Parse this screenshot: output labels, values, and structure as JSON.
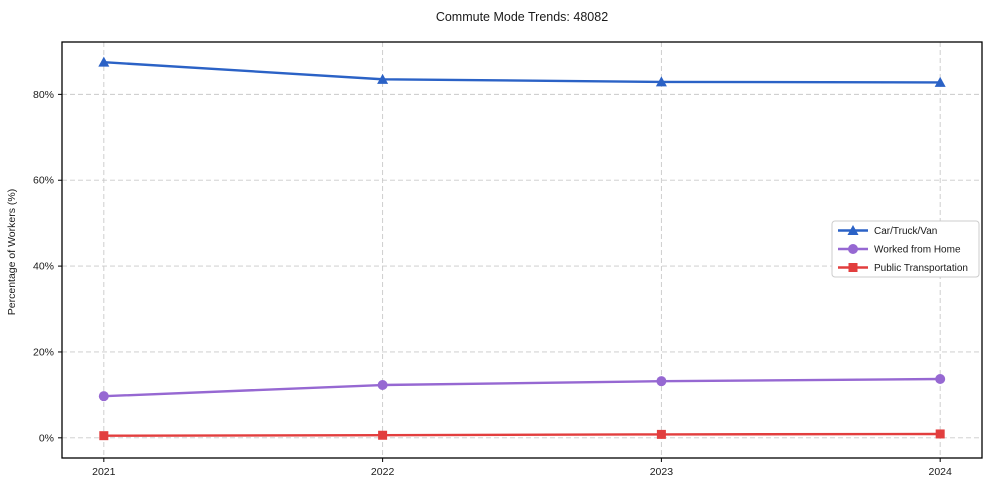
{
  "figure": {
    "background": "#ffffff",
    "spine_color": "#000000",
    "grid_color": "#c9c9c9",
    "text_color": "#1a1a1a",
    "legend_border_color": "#cccccc"
  },
  "chart_data": {
    "type": "line",
    "title": "Commute Mode Trends: 48082",
    "xlabel": "",
    "ylabel": "Percentage of Workers (%)",
    "x": [
      2021,
      2022,
      2023,
      2024
    ],
    "x_tick_labels": [
      "2021",
      "2022",
      "2023",
      "2024"
    ],
    "y_ticks": [
      0,
      20,
      40,
      60,
      80
    ],
    "y_tick_labels": [
      "0%",
      "20%",
      "40%",
      "60%",
      "80%"
    ],
    "xlim": [
      2020.85,
      2024.15
    ],
    "ylim": [
      -4.7,
      92.2
    ],
    "grid": true,
    "grid_style": "dashed",
    "legend_position": "right",
    "series": [
      {
        "name": "Car/Truck/Van",
        "color": "#2b62c6",
        "marker": "triangle",
        "values": [
          87.5,
          83.5,
          82.9,
          82.8
        ]
      },
      {
        "name": "Worked from Home",
        "color": "#9668d2",
        "marker": "circle",
        "values": [
          9.7,
          12.3,
          13.2,
          13.7
        ]
      },
      {
        "name": "Public Transportation",
        "color": "#e23e3e",
        "marker": "square",
        "values": [
          0.5,
          0.6,
          0.8,
          0.9
        ]
      }
    ]
  }
}
